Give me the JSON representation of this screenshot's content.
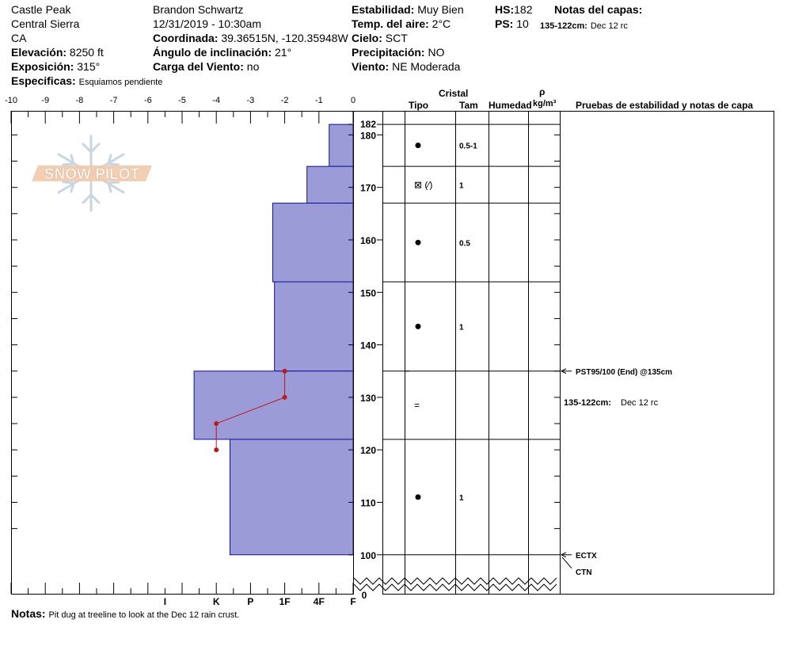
{
  "header": {
    "location": "Castle Peak",
    "range": "Central Sierra",
    "state": "CA",
    "elevation_label": "Elevación:",
    "elevation_value": "8250 ft",
    "aspect_label": "Exposición:",
    "aspect_value": "315°",
    "specifics_label": "Especificas:",
    "specifics_value": "Esquiamos pendiente",
    "observer": "Brandon Schwartz",
    "datetime": "12/31/2019 - 10:30am",
    "coord_label": "Coordinada:",
    "coord_value": "39.36515N, -120.35948W",
    "slope_label": "Ángulo de inclinación:",
    "slope_value": "21°",
    "wind_load_label": "Carga del Viento:",
    "wind_load_value": "no",
    "stability_label": "Estabilidad:",
    "stability_value": "Muy Bien",
    "air_temp_label": "Temp. del aire:",
    "air_temp_value": "2°C",
    "sky_label": "Cielo:",
    "sky_value": "SCT",
    "precip_label": "Precipitación:",
    "precip_value": "NO",
    "wind_label": "Viento:",
    "wind_value": "NE Moderada",
    "hs_label": "HS:",
    "hs_value": "182",
    "ps_label": "PS:",
    "ps_value": "10",
    "layer_notes_title": "Notas del capas:",
    "layer_note_range": "135-122cm:",
    "layer_note_text": "Dec 12 rc"
  },
  "logo_text": "SNOW PILOT",
  "notes": {
    "label": "Notas:",
    "text": "Pit dug at treeline to look at the Dec 12 rain crust."
  },
  "columns": {
    "crystal": "Cristal",
    "type": "Tipo",
    "size": "Tam",
    "moisture": "Humedad",
    "rho": "ρ",
    "density_unit": "kg/m³",
    "tests": "Pruebas de estabilidad y notas de capa"
  },
  "chart_data": {
    "type": "bar",
    "temp_axis": {
      "ticks": [
        -10,
        -9,
        -8,
        -7,
        -6,
        -5,
        -4,
        -3,
        -2,
        -1,
        0
      ],
      "labels": [
        "-10",
        "-9",
        "-8",
        "-7",
        "-6",
        "-5",
        "-4",
        "-3",
        "-2",
        "-1",
        "0"
      ],
      "range": [
        -10,
        0
      ]
    },
    "hardness_axis": {
      "labels": [
        "I",
        "K",
        "P",
        "1F",
        "4F",
        "F"
      ],
      "values": [
        5.5,
        4,
        3,
        2,
        1,
        0
      ]
    },
    "depth_axis": {
      "range": [
        0,
        182
      ],
      "ticks": [
        100,
        110,
        120,
        130,
        140,
        150,
        160,
        170,
        180,
        182
      ],
      "labels": [
        "100",
        "110",
        "120",
        "130",
        "140",
        "150",
        "160",
        "170",
        "180",
        "182"
      ],
      "zero_label": "0"
    },
    "layers": [
      {
        "top": 182,
        "bottom": 174,
        "hardness": 0.7,
        "grain": "•",
        "size": "0.5-1"
      },
      {
        "top": 174,
        "bottom": 167,
        "hardness": 1.35,
        "grain": "⊠ (∕)",
        "size": "1"
      },
      {
        "top": 167,
        "bottom": 152,
        "hardness": 2.35,
        "grain": "•",
        "size": "0.5"
      },
      {
        "top": 152,
        "bottom": 135,
        "hardness": 2.3,
        "grain": "•",
        "size": "1"
      },
      {
        "top": 135,
        "bottom": 122,
        "hardness": 4.65,
        "grain": "=",
        "size": ""
      },
      {
        "top": 122,
        "bottom": 100,
        "hardness": 3.6,
        "grain": "•",
        "size": "1"
      }
    ],
    "temperature_profile": [
      {
        "depth": 135,
        "temp": -2
      },
      {
        "depth": 130,
        "temp": -2
      },
      {
        "depth": 125,
        "temp": -4
      },
      {
        "depth": 120,
        "temp": -4
      }
    ],
    "tests": [
      {
        "depth": 135,
        "label": "PST95/100 (End) @135cm"
      },
      {
        "depth": 100,
        "label": "ECTX"
      },
      {
        "depth": 100,
        "label": "CTN"
      }
    ],
    "layer_notes": [
      {
        "range": "135-122cm:",
        "text": "Dec 12 rc"
      }
    ],
    "colors": {
      "layer_fill": "#9b9bd7",
      "layer_stroke": "#1010a0",
      "temp_line": "#c01818"
    }
  }
}
